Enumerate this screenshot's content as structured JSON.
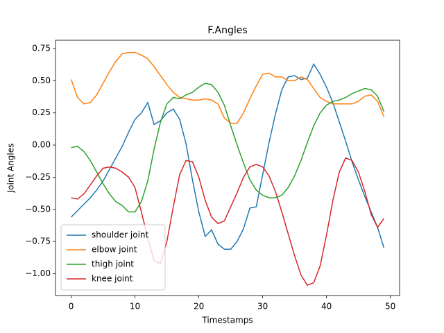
{
  "chart_data": {
    "type": "line",
    "title": "F.Angles",
    "x_label": "Timestamps",
    "y_label": "Joint Angles",
    "x": [
      0,
      1,
      2,
      3,
      4,
      5,
      6,
      7,
      8,
      9,
      10,
      11,
      12,
      13,
      14,
      15,
      16,
      17,
      18,
      19,
      20,
      21,
      22,
      23,
      24,
      25,
      26,
      27,
      28,
      29,
      30,
      31,
      32,
      33,
      34,
      35,
      36,
      37,
      38,
      39,
      40,
      41,
      42,
      43,
      44,
      45,
      46,
      47,
      48,
      49
    ],
    "series": [
      {
        "name": "shoulder joint",
        "color": "#1f77b4",
        "values": [
          -0.56,
          -0.51,
          -0.46,
          -0.41,
          -0.35,
          -0.28,
          -0.19,
          -0.1,
          -0.01,
          0.1,
          0.2,
          0.25,
          0.33,
          0.16,
          0.19,
          0.25,
          0.28,
          0.2,
          0.01,
          -0.27,
          -0.52,
          -0.71,
          -0.66,
          -0.77,
          -0.81,
          -0.81,
          -0.75,
          -0.65,
          -0.49,
          -0.48,
          -0.23,
          0.02,
          0.24,
          0.43,
          0.53,
          0.54,
          0.51,
          0.52,
          0.63,
          0.55,
          0.45,
          0.33,
          0.18,
          0.03,
          -0.13,
          -0.27,
          -0.4,
          -0.52,
          -0.64,
          -0.8
        ]
      },
      {
        "name": "elbow joint",
        "color": "#ff7f0e",
        "values": [
          0.51,
          0.37,
          0.32,
          0.33,
          0.39,
          0.48,
          0.57,
          0.65,
          0.71,
          0.72,
          0.72,
          0.7,
          0.67,
          0.61,
          0.54,
          0.47,
          0.41,
          0.37,
          0.36,
          0.35,
          0.35,
          0.36,
          0.35,
          0.32,
          0.21,
          0.17,
          0.17,
          0.25,
          0.36,
          0.46,
          0.55,
          0.56,
          0.53,
          0.53,
          0.5,
          0.5,
          0.53,
          0.51,
          0.44,
          0.37,
          0.34,
          0.32,
          0.32,
          0.32,
          0.32,
          0.34,
          0.38,
          0.39,
          0.34,
          0.22
        ]
      },
      {
        "name": "thigh joint",
        "color": "#2ca02c",
        "values": [
          -0.02,
          -0.01,
          -0.05,
          -0.12,
          -0.21,
          -0.3,
          -0.38,
          -0.44,
          -0.47,
          -0.52,
          -0.52,
          -0.44,
          -0.28,
          -0.03,
          0.18,
          0.32,
          0.37,
          0.36,
          0.39,
          0.41,
          0.45,
          0.48,
          0.47,
          0.41,
          0.31,
          0.15,
          0.0,
          -0.14,
          -0.27,
          -0.35,
          -0.39,
          -0.41,
          -0.41,
          -0.39,
          -0.33,
          -0.24,
          -0.12,
          0.02,
          0.15,
          0.25,
          0.31,
          0.34,
          0.35,
          0.37,
          0.4,
          0.42,
          0.44,
          0.43,
          0.38,
          0.26
        ]
      },
      {
        "name": "knee joint",
        "color": "#d62728",
        "values": [
          -0.41,
          -0.42,
          -0.38,
          -0.31,
          -0.24,
          -0.18,
          -0.17,
          -0.18,
          -0.21,
          -0.25,
          -0.33,
          -0.52,
          -0.72,
          -0.9,
          -0.92,
          -0.75,
          -0.48,
          -0.23,
          -0.12,
          -0.13,
          -0.25,
          -0.43,
          -0.56,
          -0.61,
          -0.59,
          -0.48,
          -0.37,
          -0.25,
          -0.17,
          -0.15,
          -0.17,
          -0.24,
          -0.36,
          -0.52,
          -0.69,
          -0.86,
          -1.01,
          -1.09,
          -1.07,
          -0.94,
          -0.7,
          -0.43,
          -0.21,
          -0.1,
          -0.12,
          -0.21,
          -0.36,
          -0.54,
          -0.64,
          -0.57
        ]
      }
    ],
    "xlim": [
      -2.45,
      51.45
    ],
    "ylim": [
      -1.17,
      0.815
    ],
    "xticks": [
      0,
      10,
      20,
      30,
      40,
      50
    ],
    "yticks": [
      {
        "value": 0.75,
        "label": "0.75"
      },
      {
        "value": 0.5,
        "label": "0.50"
      },
      {
        "value": 0.25,
        "label": "0.25"
      },
      {
        "value": 0,
        "label": "0.00"
      },
      {
        "value": -0.25,
        "label": "−0.25"
      },
      {
        "value": -0.5,
        "label": "−0.50"
      },
      {
        "value": -0.75,
        "label": "−0.75"
      },
      {
        "value": -1,
        "label": "−1.00"
      }
    ],
    "legend": "lower left"
  }
}
